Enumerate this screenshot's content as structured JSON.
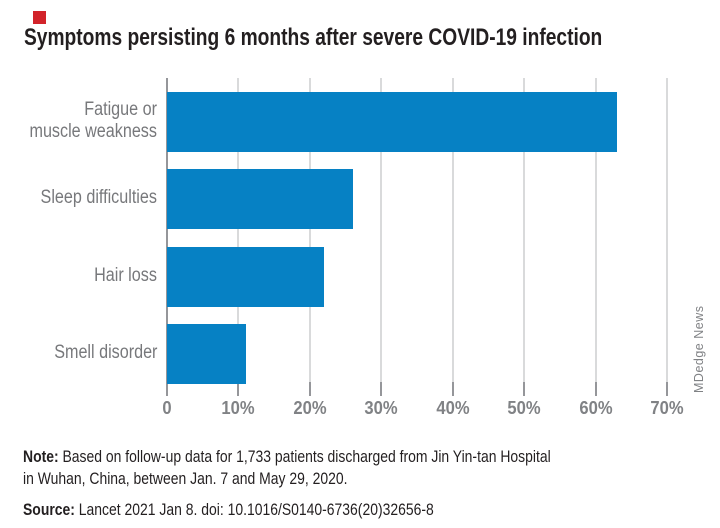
{
  "title": "Symptoms persisting 6 months after severe COVID-19 infection",
  "branding": {
    "red_square_color": "#d2232a",
    "credit": "MDedge News"
  },
  "chart_data": {
    "type": "bar",
    "orientation": "horizontal",
    "title": "Symptoms persisting 6 months after severe COVID-19 infection",
    "categories": [
      "Fatigue or muscle weakness",
      "Sleep difficulties",
      "Hair loss",
      "Smell disorder"
    ],
    "category_label_lines": [
      [
        "Fatigue or",
        "muscle weakness"
      ],
      [
        "Sleep difficulties"
      ],
      [
        "Hair loss"
      ],
      [
        "Smell disorder"
      ]
    ],
    "values": [
      63,
      26,
      22,
      11
    ],
    "unit": "%",
    "xlim": [
      0,
      70
    ],
    "x_tick_values": [
      0,
      10,
      20,
      30,
      40,
      50,
      60,
      70
    ],
    "x_tick_labels": [
      "0",
      "10%",
      "20%",
      "30%",
      "40%",
      "50%",
      "60%",
      "70%"
    ],
    "bar_color": "#0681c4",
    "grid": true,
    "legend": false
  },
  "notes": {
    "note_label": "Note:",
    "note_line1_rest": " Based on follow-up data for 1,733 patients discharged from Jin Yin-tan Hospital",
    "note_line2": "in Wuhan, China, between Jan. 7 and May 29, 2020.",
    "source_label": "Source:",
    "source_rest": " Lancet 2021 Jan 8. doi: 10.1016/S0140-6736(20)32656-8"
  }
}
